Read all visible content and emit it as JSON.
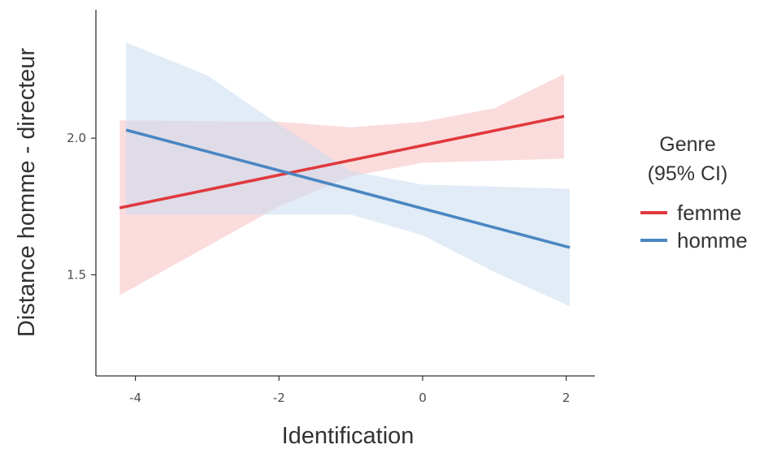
{
  "chart_data": {
    "type": "line",
    "xlabel": "Identification",
    "ylabel": "Distance homme - directeur",
    "xlim": [
      -4.55,
      2.4
    ],
    "ylim": [
      1.13,
      2.47
    ],
    "x_ticks": [
      -4,
      -2,
      0,
      2
    ],
    "x_tick_labels": [
      "-4",
      "-2",
      "0",
      "2"
    ],
    "y_ticks": [
      1.5,
      2.0
    ],
    "y_tick_labels": [
      "1.5",
      "2.0"
    ],
    "grid": false,
    "legend": {
      "title_lines": [
        "Genre",
        "(95% CI)"
      ],
      "placement": "right"
    },
    "series": [
      {
        "name": "femme",
        "color": "#e0393e",
        "fill_color": "#f8bfc1",
        "x": [
          -4.22,
          1.97
        ],
        "y": [
          1.745,
          2.08
        ],
        "ci_lower": [
          [
            -4.22,
            1.425
          ],
          [
            -2.0,
            1.75
          ],
          [
            -1.0,
            1.86
          ],
          [
            0.0,
            1.91
          ],
          [
            1.97,
            1.925
          ]
        ],
        "ci_upper": [
          [
            -4.22,
            2.065
          ],
          [
            -2.0,
            2.06
          ],
          [
            -1.0,
            2.04
          ],
          [
            0.0,
            2.06
          ],
          [
            1.0,
            2.11
          ],
          [
            1.97,
            2.235
          ]
        ]
      },
      {
        "name": "homme",
        "color": "#4a86c2",
        "fill_color": "#c8dcef",
        "x": [
          -4.13,
          2.05
        ],
        "y": [
          2.03,
          1.6
        ],
        "ci_lower": [
          [
            -4.13,
            1.72
          ],
          [
            -2.0,
            1.72
          ],
          [
            -1.0,
            1.72
          ],
          [
            0.0,
            1.645
          ],
          [
            1.0,
            1.51
          ],
          [
            2.05,
            1.385
          ]
        ],
        "ci_upper": [
          [
            -4.13,
            2.35
          ],
          [
            -3.0,
            2.23
          ],
          [
            -2.0,
            2.05
          ],
          [
            -1.0,
            1.88
          ],
          [
            0.0,
            1.83
          ],
          [
            2.05,
            1.815
          ]
        ]
      }
    ]
  }
}
